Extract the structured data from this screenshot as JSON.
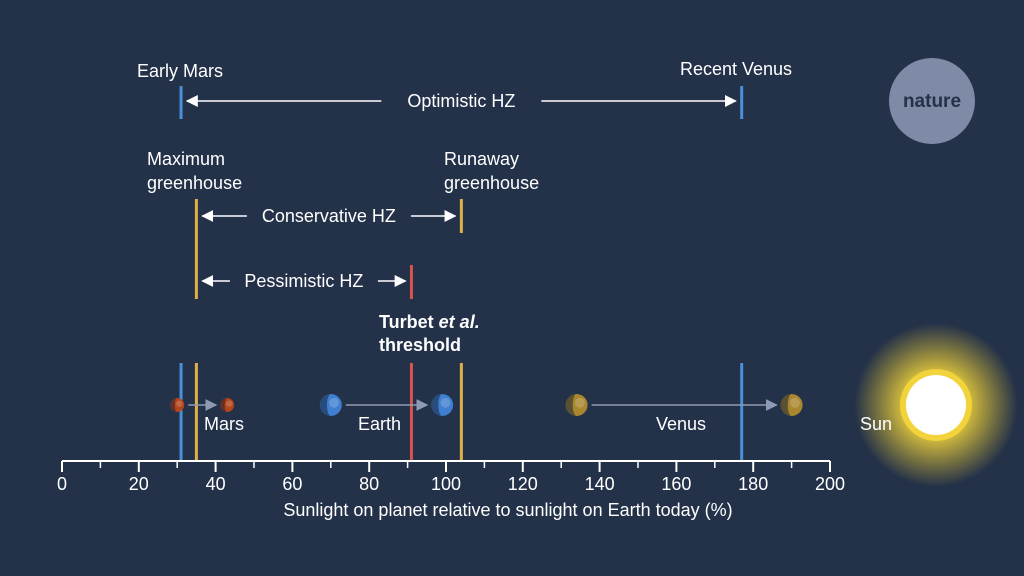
{
  "colors": {
    "background": "#233149",
    "text": "#ffffff",
    "optimistic": "#4a90d9",
    "conservative": "#e0b048",
    "pessimistic": "#d9534f",
    "badge": "#7f8aa6",
    "axis": "#ffffff"
  },
  "badge": {
    "label": "nature"
  },
  "zones": {
    "optimistic": {
      "left_label": "Early Mars",
      "right_label": "Recent Venus",
      "zone_label": "Optimistic HZ",
      "inner": 31,
      "outer": 177
    },
    "conservative": {
      "left_label_line1": "Maximum",
      "left_label_line2": "greenhouse",
      "right_label_line1": "Runaway",
      "right_label_line2": "greenhouse",
      "zone_label": "Conservative HZ",
      "inner": 35,
      "outer": 104
    },
    "pessimistic": {
      "zone_label": "Pessimistic HZ",
      "inner": 35,
      "outer": 91
    }
  },
  "threshold": {
    "line1": "Turbet ",
    "line1_italic": "et al.",
    "line2": "threshold",
    "value": 91
  },
  "planets": [
    {
      "name": "Mars",
      "from": 30,
      "to": 43,
      "color": "#b5451b"
    },
    {
      "name": "Earth",
      "from": 70,
      "to": 99,
      "color": "#3f7fd0"
    },
    {
      "name": "Venus",
      "from": 134,
      "to": 190,
      "color": "#a9872e"
    }
  ],
  "sun_label": "Sun",
  "chart_data": {
    "type": "number-line",
    "xlabel": "Sunlight on planet relative to sunlight on Earth today (%)",
    "xlim": [
      0,
      200
    ],
    "major_ticks": [
      0,
      20,
      40,
      60,
      80,
      100,
      120,
      140,
      160,
      180,
      200
    ],
    "minor_ticks": [
      10,
      30,
      50,
      70,
      90,
      110,
      130,
      150,
      170,
      190
    ],
    "markers": [
      {
        "name": "Early Mars",
        "value": 31,
        "zone": "optimistic"
      },
      {
        "name": "Maximum greenhouse",
        "value": 35,
        "zone": "conservative"
      },
      {
        "name": "Turbet et al. threshold",
        "value": 91,
        "zone": "pessimistic"
      },
      {
        "name": "Runaway greenhouse",
        "value": 104,
        "zone": "conservative"
      },
      {
        "name": "Recent Venus",
        "value": 177,
        "zone": "optimistic"
      }
    ]
  }
}
